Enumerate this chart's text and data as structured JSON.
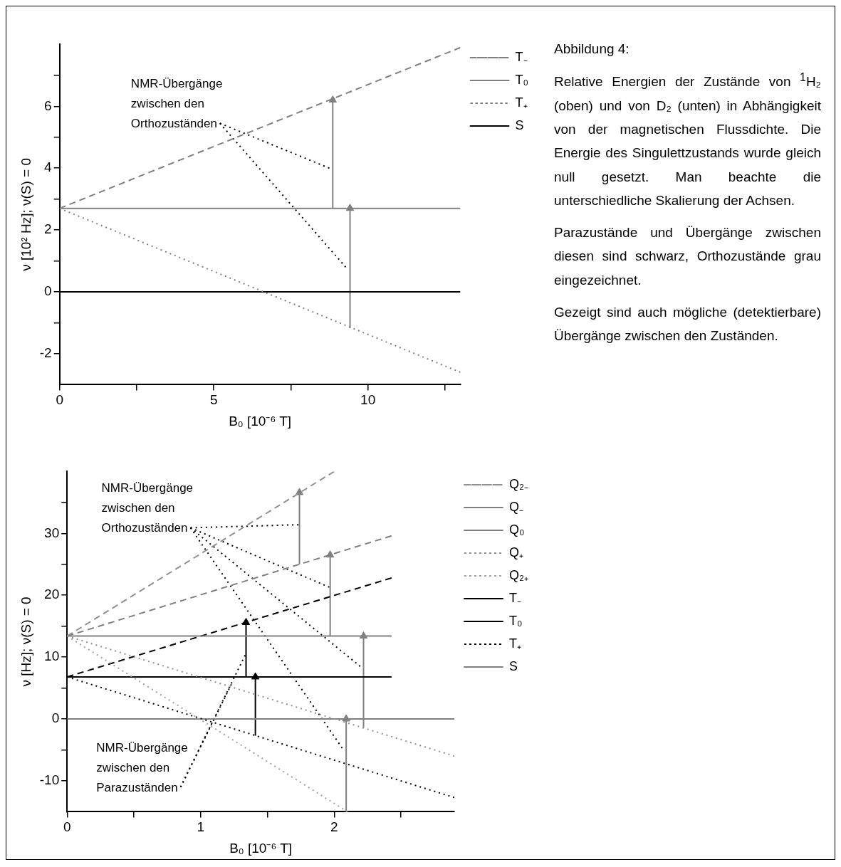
{
  "chart_data": [
    {
      "type": "line",
      "xlabel": "B₀ [10⁻⁶ T]",
      "ylabel": "ν [10² Hz]; ν(S) = 0",
      "xlim": [
        0,
        13
      ],
      "ylim": [
        -3,
        8
      ],
      "xticks": [
        0,
        {
          "value": 2.5,
          "label": null
        },
        5,
        {
          "value": 7.5,
          "label": null
        },
        10,
        {
          "value": 12.5,
          "label": null
        }
      ],
      "yticks": [
        {
          "value": -1,
          "label": null
        },
        -2,
        0,
        {
          "value": 1,
          "label": null
        },
        2,
        {
          "value": 3,
          "label": null
        },
        4,
        {
          "value": 5,
          "label": null
        },
        6,
        {
          "value": 7,
          "label": null
        }
      ],
      "legend": "top right",
      "annotations": [
        {
          "text": "NMR-Übergänge zwischen den Orthozuständen",
          "x": 5.2,
          "y": 5.45
        }
      ],
      "series": [
        {
          "name": "T₋",
          "color": "#808080",
          "line_style": "dashed",
          "x": [
            0,
            13
          ],
          "values": [
            2.7,
            7.9
          ]
        },
        {
          "name": "T₀",
          "color": "#808080",
          "line_style": "solid",
          "x": [
            0,
            13
          ],
          "values": [
            2.7,
            2.7
          ]
        },
        {
          "name": "T₊",
          "color": "#808080",
          "line_style": "dotted",
          "x": [
            0,
            13
          ],
          "values": [
            2.7,
            -2.6
          ]
        },
        {
          "name": "S",
          "color": "#000000",
          "line_style": "solid",
          "x": [
            0,
            13
          ],
          "values": [
            0,
            0
          ]
        },
        {
          "color": "#808080",
          "marker": "triangle",
          "x": [
            8.86,
            8.86
          ],
          "values": [
            2.7,
            6.2
          ]
        },
        {
          "color": "#808080",
          "marker": "triangle",
          "x": [
            9.42,
            9.42
          ],
          "values": [
            -1.17,
            2.7
          ]
        },
        {
          "color": "#000000",
          "line_style": "dotted",
          "x": [
            5.2,
            8.75
          ],
          "values": [
            5.45,
            4.0
          ]
        },
        {
          "color": "#000000",
          "line_style": "dotted",
          "x": [
            5.2,
            9.28
          ],
          "values": [
            5.45,
            0.8
          ]
        }
      ]
    },
    {
      "type": "line",
      "xlabel": "B₀ [10⁻⁶ T]",
      "ylabel": "ν [Hz]; ν(S) = 0",
      "xlim": [
        0,
        2.9
      ],
      "ylim": [
        -15,
        40
      ],
      "xticks": [
        0,
        {
          "value": 0.5,
          "label": null
        },
        1,
        {
          "value": 1.5,
          "label": null
        },
        2,
        {
          "value": 2.5,
          "label": null
        }
      ],
      "yticks": [
        -10,
        {
          "value": -5,
          "label": null
        },
        0,
        {
          "value": 5,
          "label": null
        },
        10,
        {
          "value": 15,
          "label": null
        },
        20,
        {
          "value": 25,
          "label": null
        },
        30,
        {
          "value": 35,
          "label": null
        }
      ],
      "legend": "top right",
      "annotations": [
        {
          "text": "NMR-Übergänge zwischen den Orthozuständen",
          "x": 0.924,
          "y": 30.9
        },
        {
          "text": "NMR-Übergänge zwischen den Parazuständen",
          "x": 0.85,
          "y": -11.0
        }
      ],
      "series": [
        {
          "name": "Q₂₋",
          "color": "#909090",
          "line_style": "dashed",
          "x": [
            0,
            2.0
          ],
          "values": [
            13.4,
            40
          ]
        },
        {
          "name": "Q₋",
          "color": "#808080",
          "line_style": "dashed",
          "x": [
            0,
            2.43
          ],
          "values": [
            13.4,
            29.6
          ]
        },
        {
          "name": "Q₀",
          "color": "#808080",
          "line_style": "solid",
          "x": [
            0,
            2.43
          ],
          "values": [
            13.4,
            13.4
          ]
        },
        {
          "name": "Q₊",
          "color": "#909090",
          "line_style": "dotted",
          "x": [
            0,
            2.9
          ],
          "values": [
            13.4,
            -6.0
          ]
        },
        {
          "name": "Q₂₊",
          "color": "#a0a0a0",
          "line_style": "dotted",
          "x": [
            0,
            2.1
          ],
          "values": [
            13.4,
            -15
          ]
        },
        {
          "name": "T₋",
          "color": "#000000",
          "line_style": "dashed",
          "x": [
            0,
            2.43
          ],
          "values": [
            6.8,
            22.8
          ]
        },
        {
          "name": "T₀",
          "color": "#000000",
          "line_style": "solid",
          "x": [
            0,
            2.43
          ],
          "values": [
            6.8,
            6.8
          ]
        },
        {
          "name": "T₊",
          "color": "#000000",
          "line_style": "dotted",
          "x": [
            0,
            2.9
          ],
          "values": [
            6.8,
            -12.7
          ]
        },
        {
          "name": "S",
          "color": "#808080",
          "line_style": "solid",
          "x": [
            0,
            2.9
          ],
          "values": [
            0,
            0
          ]
        },
        {
          "color": "#808080",
          "marker": "triangle",
          "x": [
            1.74,
            1.74
          ],
          "values": [
            25.0,
            36.6
          ]
        },
        {
          "color": "#808080",
          "marker": "triangle",
          "x": [
            1.97,
            1.97
          ],
          "values": [
            13.4,
            26.5
          ]
        },
        {
          "color": "#808080",
          "marker": "triangle",
          "x": [
            2.22,
            2.22
          ],
          "values": [
            -1.4,
            13.4
          ]
        },
        {
          "color": "#808080",
          "marker": "triangle",
          "x": [
            2.09,
            2.09
          ],
          "values": [
            -15,
            0
          ]
        },
        {
          "color": "#000000",
          "marker": "triangle",
          "x": [
            1.34,
            1.34
          ],
          "values": [
            6.8,
            15.6
          ]
        },
        {
          "color": "#000000",
          "marker": "triangle",
          "x": [
            1.41,
            1.41
          ],
          "values": [
            -2.7,
            6.8
          ]
        },
        {
          "color": "#000000",
          "line_style": "dotted",
          "x": [
            0.924,
            1.733
          ],
          "values": [
            30.9,
            31.4
          ]
        },
        {
          "color": "#000000",
          "line_style": "dotted",
          "x": [
            0.924,
            1.964
          ],
          "values": [
            30.9,
            21.3
          ]
        },
        {
          "color": "#000000",
          "line_style": "dotted",
          "x": [
            0.924,
            2.195
          ],
          "values": [
            30.9,
            8.5
          ]
        },
        {
          "color": "#000000",
          "line_style": "dotted",
          "x": [
            0.924,
            2.06
          ],
          "values": [
            30.9,
            -4.7
          ]
        },
        {
          "color": "#000000",
          "line_style": "dotted",
          "x": [
            0.85,
            1.333
          ],
          "values": [
            -11.0,
            10.3
          ]
        },
        {
          "color": "#000000",
          "line_style": "dotted",
          "x": [
            0.85,
            1.23
          ],
          "values": [
            -11.0,
            5.6
          ]
        }
      ]
    },
    {
      "type": "other",
      "title": "Abbildung 4:",
      "annotations": [
        "Relative Energien der Zustände von $^{1}$H₂ (oben) und von D₂ (unten) in Abhängigkeit von der magnetischen Flussdichte. Die Energie des Singulettzustands wurde gleich null gesetzt. Man beachte die unterschiedliche Skalierung der Achsen.",
        "Parazustände und Übergänge zwischen diesen sind schwarz, Orthozustände grau eingezeichnet.",
        "Gezeigt sind auch mögliche (detektierbare) Übergänge zwischen den Zuständen."
      ]
    }
  ]
}
